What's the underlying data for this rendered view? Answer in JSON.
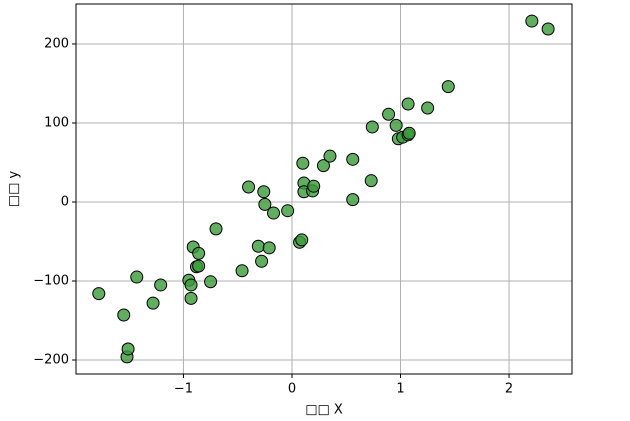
{
  "chart_data": {
    "type": "scatter",
    "x_label": "□□ X",
    "y_label": "□□ y",
    "series": [
      {
        "color": "#3a9a3a",
        "x": [
          -1.78,
          -1.55,
          -1.52,
          -1.51,
          -1.43,
          -1.28,
          -1.21,
          -0.95,
          -0.93,
          -0.93,
          -0.91,
          -0.88,
          -0.86,
          -0.86,
          -0.75,
          -0.7,
          -0.46,
          -0.4,
          -0.31,
          -0.28,
          -0.26,
          -0.25,
          -0.21,
          -0.17,
          -0.04,
          0.07,
          0.09,
          0.1,
          0.11,
          0.11,
          0.19,
          0.2,
          0.29,
          0.35,
          0.56,
          0.56,
          0.73,
          0.74,
          0.89,
          0.96,
          0.98,
          1.02,
          1.07,
          1.08,
          1.07,
          1.25,
          1.44,
          2.21,
          2.36
        ],
        "values": [
          -116,
          -143,
          -196,
          -186,
          -95,
          -128,
          -105,
          -99,
          -105,
          -122,
          -57,
          -82,
          -65,
          -81,
          -101,
          -34,
          -87,
          19,
          -56,
          -75,
          13,
          -3,
          -58,
          -14,
          -11,
          -51,
          -48,
          49,
          24,
          13,
          14,
          20,
          46,
          58,
          54,
          3,
          27,
          95,
          111,
          97,
          80,
          82,
          85,
          87,
          124,
          119,
          146,
          229,
          219
        ]
      }
    ],
    "xlim": [
      -1.99,
      2.58
    ],
    "ylim": [
      -217.7,
      250.6
    ],
    "xticks": [
      {
        "value": -1,
        "label": "−1"
      },
      0,
      1,
      2
    ],
    "yticks": [
      {
        "value": -200,
        "label": "−200"
      },
      {
        "value": -100,
        "label": "−100"
      },
      0,
      100,
      200
    ],
    "grid": true
  }
}
